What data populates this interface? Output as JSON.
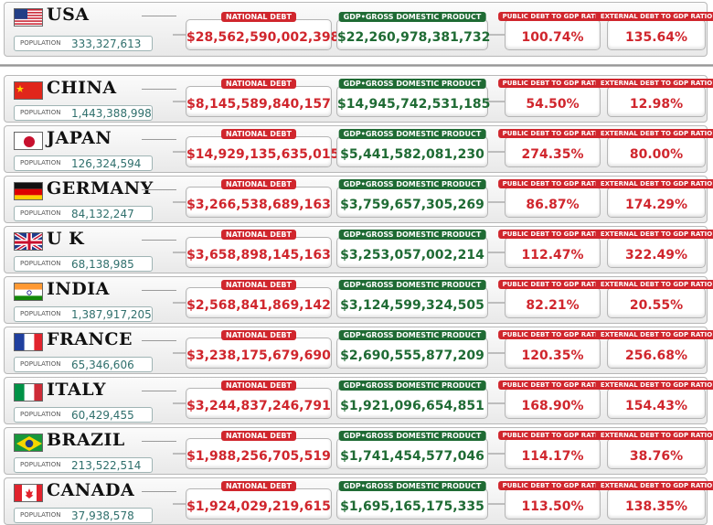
{
  "labels": {
    "population": "POPULATION",
    "national_debt": "NATIONAL DEBT",
    "gdp": "GDP•GROSS DOMESTIC PRODUCT",
    "public_ratio": "PUBLIC DEBT TO GDP RATIO",
    "external_ratio": "EXTERNAL DEBT TO GDP RATIO"
  },
  "countries": [
    {
      "name": "USA",
      "flag": "usa-flag-icon",
      "population": "333,327,613",
      "debt": "$28,562,590,002,398",
      "gdp": "$22,260,978,381,732",
      "public": "100.74%",
      "external": "135.64%"
    },
    {
      "name": "CHINA",
      "flag": "china-flag-icon",
      "population": "1,443,388,998",
      "debt": "$8,145,589,840,157",
      "gdp": "$14,945,742,531,185",
      "public": "54.50%",
      "external": "12.98%"
    },
    {
      "name": "JAPAN",
      "flag": "japan-flag-icon",
      "population": "126,324,594",
      "debt": "$14,929,135,635,015",
      "gdp": "$5,441,582,081,230",
      "public": "274.35%",
      "external": "80.00%"
    },
    {
      "name": "GERMANY",
      "flag": "germany-flag-icon",
      "population": "84,132,247",
      "debt": "$3,266,538,689,163",
      "gdp": "$3,759,657,305,269",
      "public": "86.87%",
      "external": "174.29%"
    },
    {
      "name": "U K",
      "flag": "uk-flag-icon",
      "population": "68,138,985",
      "debt": "$3,658,898,145,163",
      "gdp": "$3,253,057,002,214",
      "public": "112.47%",
      "external": "322.49%"
    },
    {
      "name": "INDIA",
      "flag": "india-flag-icon",
      "population": "1,387,917,205",
      "debt": "$2,568,841,869,142",
      "gdp": "$3,124,599,324,505",
      "public": "82.21%",
      "external": "20.55%"
    },
    {
      "name": "FRANCE",
      "flag": "france-flag-icon",
      "population": "65,346,606",
      "debt": "$3,238,175,679,690",
      "gdp": "$2,690,555,877,209",
      "public": "120.35%",
      "external": "256.68%"
    },
    {
      "name": "ITALY",
      "flag": "italy-flag-icon",
      "population": "60,429,455",
      "debt": "$3,244,837,246,791",
      "gdp": "$1,921,096,654,851",
      "public": "168.90%",
      "external": "154.43%"
    },
    {
      "name": "BRAZIL",
      "flag": "brazil-flag-icon",
      "population": "213,522,514",
      "debt": "$1,988,256,705,519",
      "gdp": "$1,741,454,577,046",
      "public": "114.17%",
      "external": "38.76%"
    },
    {
      "name": "CANADA",
      "flag": "canada-flag-icon",
      "population": "37,938,578",
      "debt": "$1,924,029,219,615",
      "gdp": "$1,695,165,175,335",
      "public": "113.50%",
      "external": "138.35%"
    }
  ],
  "colors": {
    "debt": "#d0262d",
    "gdp": "#1f6b34",
    "population": "#2f6f6c"
  }
}
